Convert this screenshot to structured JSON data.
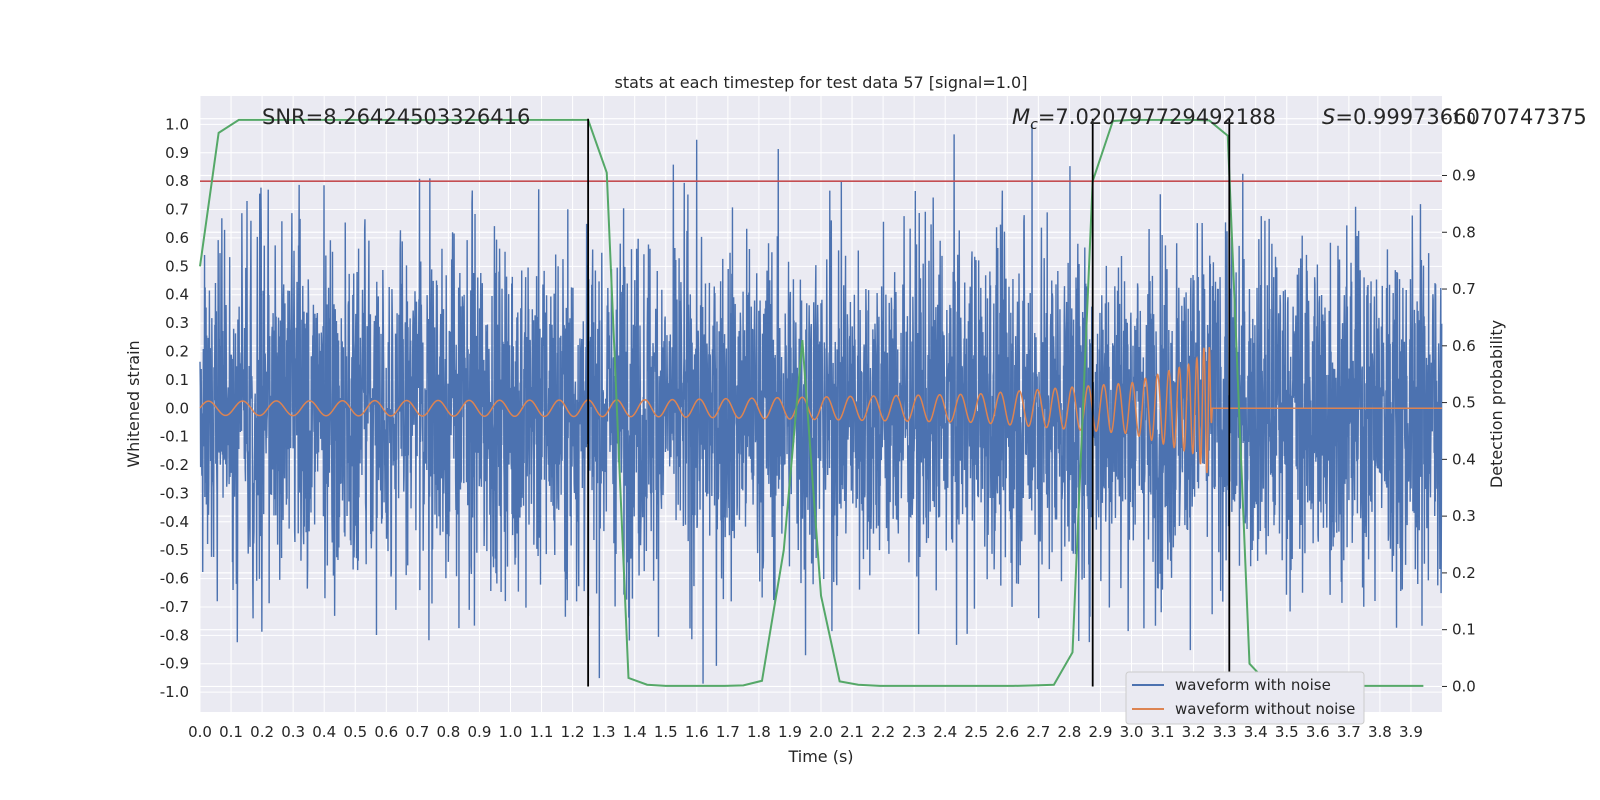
{
  "chart_data": {
    "type": "line",
    "title": "stats at each timestep for test data 57 [signal=1.0]",
    "xlabel": "Time (s)",
    "ylabel": "Whitened strain",
    "y2label": "Detection probability",
    "xlim": [
      0.0,
      4.0
    ],
    "ylim": [
      -1.07,
      1.1
    ],
    "y2lim": [
      -0.045,
      1.04
    ],
    "x_ticks": [
      "0.0",
      "0.1",
      "0.2",
      "0.3",
      "0.4",
      "0.5",
      "0.6",
      "0.7",
      "0.8",
      "0.9",
      "1.0",
      "1.1",
      "1.2",
      "1.3",
      "1.4",
      "1.5",
      "1.6",
      "1.7",
      "1.8",
      "1.9",
      "2.0",
      "2.1",
      "2.2",
      "2.3",
      "2.4",
      "2.5",
      "2.6",
      "2.7",
      "2.8",
      "2.9",
      "3.0",
      "3.1",
      "3.2",
      "3.3",
      "3.4",
      "3.5",
      "3.6",
      "3.7",
      "3.8",
      "3.9"
    ],
    "y_ticks": [
      "-1.0",
      "-0.9",
      "-0.8",
      "-0.7",
      "-0.6",
      "-0.5",
      "-0.4",
      "-0.3",
      "-0.2",
      "-0.1",
      "0.0",
      "0.1",
      "0.2",
      "0.3",
      "0.4",
      "0.5",
      "0.6",
      "0.7",
      "0.8",
      "0.9",
      "1.0"
    ],
    "y2_ticks": [
      "0.0",
      "0.1",
      "0.2",
      "0.3",
      "0.4",
      "0.5",
      "0.6",
      "0.7",
      "0.8",
      "0.9",
      "1.0"
    ],
    "grid": true,
    "legend_position": "bottom-right",
    "annotations": {
      "snr": "SNR=8.26424503326416",
      "mc_symbol": "M",
      "mc_sub": "c",
      "mc_value": "=7.020797729492188",
      "s_symbol": "S",
      "s_value": "=0.9997366070747375"
    },
    "threshold": {
      "y": 0.8,
      "color": "#c44e52"
    },
    "vlines": [
      1.25,
      2.875,
      3.315
    ],
    "series": [
      {
        "name": "waveform with noise",
        "color": "#4c72b0",
        "axis": "left",
        "noise_std": 0.3,
        "notable_peaks": [
          [
            0.74,
            0.81
          ],
          [
            2.68,
            1.0
          ],
          [
            1.62,
            -0.97
          ],
          [
            2.83,
            -0.82
          ],
          [
            1.95,
            -0.87
          ],
          [
            0.22,
            0.77
          ]
        ]
      },
      {
        "name": "waveform without noise",
        "color": "#dd8452",
        "axis": "left",
        "description_points": [
          [
            0.0,
            0.025
          ],
          [
            1.5,
            0.03
          ],
          [
            2.5,
            0.05
          ],
          [
            3.0,
            0.09
          ],
          [
            3.2,
            0.16
          ],
          [
            3.25,
            0.24
          ],
          [
            3.26,
            0.0
          ],
          [
            4.0,
            0.0
          ]
        ]
      },
      {
        "name": "",
        "color": "#55a868",
        "axis": "right",
        "x": [
          0.0,
          0.06,
          0.125,
          1.25,
          1.31,
          1.38,
          1.44,
          1.5,
          1.56,
          1.62,
          1.69,
          1.75,
          1.81,
          1.88,
          1.94,
          2.0,
          2.06,
          2.12,
          2.19,
          2.25,
          2.31,
          2.38,
          2.44,
          2.5,
          2.56,
          2.62,
          2.69,
          2.75,
          2.81,
          2.875,
          2.94,
          3.0,
          3.06,
          3.12,
          3.19,
          3.25,
          3.31,
          3.38,
          3.44,
          3.5,
          3.56,
          3.62,
          3.69,
          3.75,
          3.81,
          3.88,
          3.94
        ],
        "y": [
          0.74,
          0.975,
          0.998,
          0.998,
          0.905,
          0.015,
          0.003,
          0.001,
          0.001,
          0.001,
          0.001,
          0.002,
          0.01,
          0.24,
          0.61,
          0.16,
          0.009,
          0.003,
          0.001,
          0.001,
          0.001,
          0.001,
          0.001,
          0.001,
          0.001,
          0.001,
          0.002,
          0.003,
          0.06,
          0.89,
          0.996,
          0.998,
          0.998,
          0.998,
          0.998,
          0.997,
          0.97,
          0.04,
          0.005,
          0.001,
          0.001,
          0.001,
          0.001,
          0.001,
          0.001,
          0.001,
          0.001
        ]
      }
    ]
  }
}
